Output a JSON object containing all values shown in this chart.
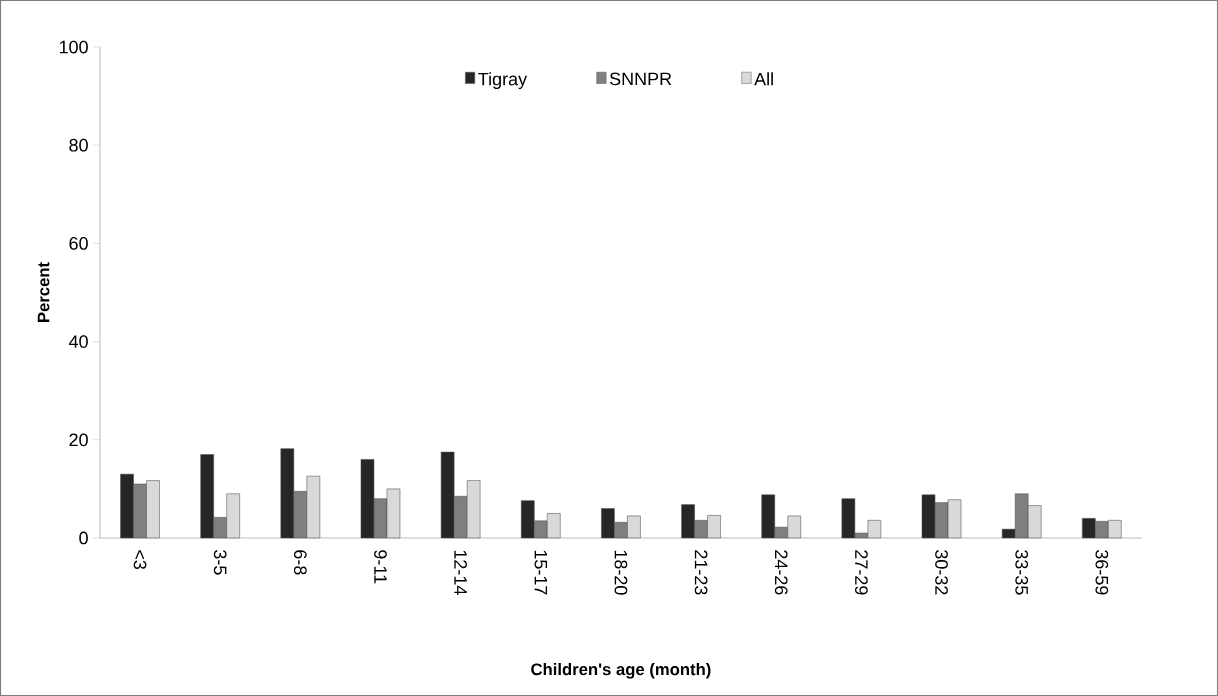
{
  "chart_data": {
    "type": "bar",
    "xlabel": "Children's age (month)",
    "ylabel": "Percent",
    "categories": [
      "<3",
      "3-5",
      "6-8",
      "9-11",
      "12-14",
      "15-17",
      "18-20",
      "21-23",
      "24-26",
      "27-29",
      "30-32",
      "33-35",
      "36-59"
    ],
    "series": [
      {
        "name": "Tigray",
        "color": "#262626",
        "values": [
          13,
          17,
          18.2,
          16,
          17.5,
          7.6,
          6,
          6.8,
          8.8,
          8,
          8.8,
          1.8,
          4
        ]
      },
      {
        "name": "SNNPR",
        "color": "#7f7f7f",
        "values": [
          11,
          4.2,
          9.5,
          8,
          8.5,
          3.5,
          3.2,
          3.6,
          2.2,
          1,
          7.2,
          9,
          3.4
        ]
      },
      {
        "name": "All",
        "color": "#d9d9d9",
        "values": [
          11.7,
          9,
          12.6,
          10,
          11.7,
          5,
          4.5,
          4.6,
          4.5,
          3.6,
          7.8,
          6.6,
          3.6
        ]
      }
    ],
    "ylim": [
      0,
      100
    ],
    "yticks": [
      0,
      20,
      40,
      60,
      80,
      100
    ],
    "grid": false,
    "legend": "top"
  }
}
